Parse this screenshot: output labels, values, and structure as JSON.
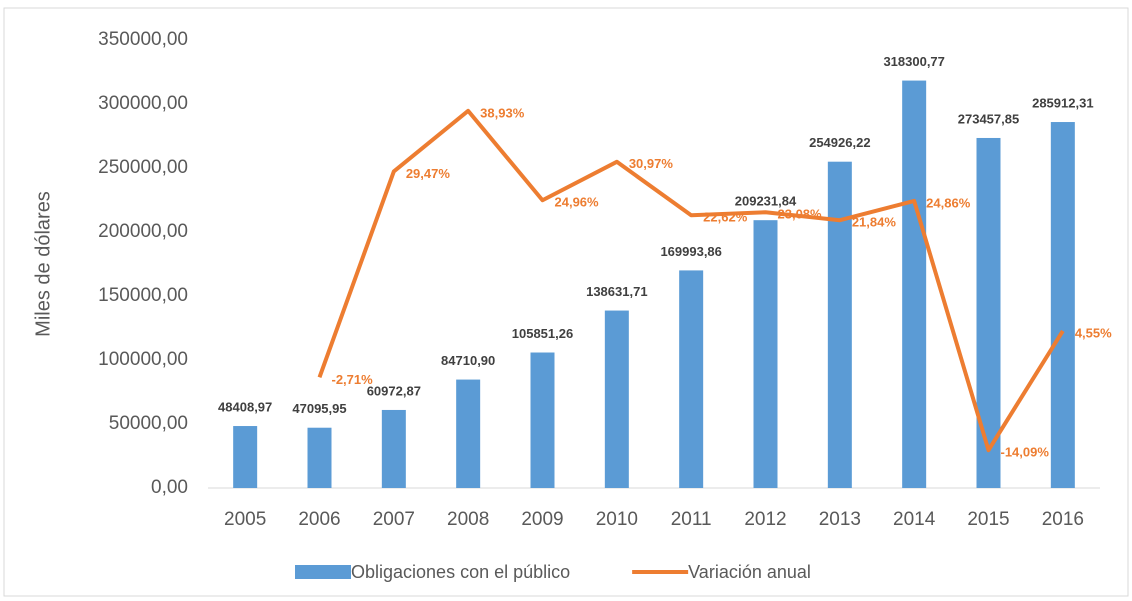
{
  "chart_data": {
    "type": "bar_line",
    "y_axis_label": "Miles de dólares",
    "categories": [
      "2005",
      "2006",
      "2007",
      "2008",
      "2009",
      "2010",
      "2011",
      "2012",
      "2013",
      "2014",
      "2015",
      "2016"
    ],
    "series": [
      {
        "name": "Obligaciones con el público",
        "type": "bar",
        "color": "#5b9bd5",
        "values": [
          48408.97,
          47095.95,
          60972.87,
          84710.9,
          105851.26,
          138631.71,
          169993.86,
          209231.84,
          254926.22,
          318300.77,
          273457.85,
          285912.31
        ],
        "value_labels": [
          "48408,97",
          "47095,95",
          "60972,87",
          "84710,90",
          "105851,26",
          "138631,71",
          "169993,86",
          "209231,84",
          "254926,22",
          "318300,77",
          "273457,85",
          "285912,31"
        ]
      },
      {
        "name": "Variación anual",
        "type": "line",
        "axis": "y2",
        "color": "#ed7d31",
        "values": [
          null,
          -2.71,
          29.47,
          38.93,
          24.96,
          30.97,
          22.62,
          23.08,
          21.84,
          24.86,
          -14.09,
          4.55
        ],
        "value_labels": [
          null,
          "-2,71%",
          "29,47%",
          "38,93%",
          "24,96%",
          "30,97%",
          "22,62%",
          "23,08%",
          "21,84%",
          "24,86%",
          "-14,09%",
          "4,55%"
        ]
      }
    ],
    "ylim": [
      0,
      350000
    ],
    "yticks": [
      {
        "value": 0,
        "label": "0,00"
      },
      {
        "value": 50000,
        "label": "50000,00"
      },
      {
        "value": 100000,
        "label": "100000,00"
      },
      {
        "value": 150000,
        "label": "150000,00"
      },
      {
        "value": 200000,
        "label": "200000,00"
      },
      {
        "value": 250000,
        "label": "250000,00"
      },
      {
        "value": 300000,
        "label": "300000,00"
      },
      {
        "value": 350000,
        "label": "350000,00"
      }
    ],
    "y2lim": [
      -20,
      50
    ],
    "legend": "bottom"
  }
}
